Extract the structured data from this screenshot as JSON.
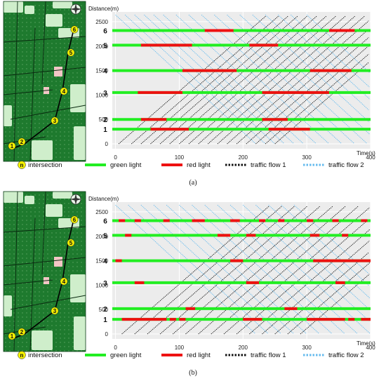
{
  "colors": {
    "green_light": "#22ee22",
    "red_light": "#ee1111",
    "flow1": "#111111",
    "flow2": "#66bbee",
    "plot_bg": "#ececec",
    "map_dark": "#1e7a2e",
    "map_light": "#cfeecb",
    "badge": "#f4f000"
  },
  "legend": {
    "badge_n": "n",
    "intersection": "intersection",
    "green": "green light",
    "red": "red light",
    "flow1": "traffic flow 1",
    "flow2": "traffic flow 2"
  },
  "chart_data": [
    {
      "type": "line",
      "caption": "(a)",
      "ylabel": "Distance(m)",
      "xlabel": "Time(s)",
      "xlim": [
        -5,
        400
      ],
      "ylim": [
        -100,
        2700
      ],
      "xticks": [
        0,
        100,
        200,
        300,
        400
      ],
      "yticks": [
        0,
        500,
        1000,
        1500,
        2000,
        2500
      ],
      "intersections": [
        {
          "id": "1",
          "pos": 300,
          "red": [
            [
              55,
              115
            ],
            [
              240,
              305
            ]
          ]
        },
        {
          "id": "2",
          "pos": 500,
          "red": [
            [
              40,
              80
            ],
            [
              230,
              270
            ]
          ]
        },
        {
          "id": "3",
          "pos": 1050,
          "red": [
            [
              35,
              105
            ],
            [
              230,
              335
            ]
          ]
        },
        {
          "id": "4",
          "pos": 1500,
          "red": [
            [
              105,
              190
            ],
            [
              305,
              370
            ]
          ]
        },
        {
          "id": "5",
          "pos": 2020,
          "red": [
            [
              40,
              120
            ],
            [
              210,
              255
            ]
          ]
        },
        {
          "id": "6",
          "pos": 2320,
          "red": [
            [
              140,
              185
            ],
            [
              335,
              375
            ]
          ]
        }
      ],
      "flow1_start": [
        5,
        25,
        40,
        55,
        70,
        85,
        100,
        115,
        130,
        145,
        160,
        175,
        190,
        205,
        220,
        235,
        250
      ],
      "flow2_start": [
        0,
        15,
        30,
        45,
        60,
        75,
        95,
        115,
        135,
        155,
        175,
        195,
        215,
        235,
        255,
        275,
        300
      ]
    },
    {
      "type": "line",
      "caption": "(b)",
      "ylabel": "Distance(m)",
      "xlabel": "Time(s)",
      "xlim": [
        -5,
        400
      ],
      "ylim": [
        -100,
        2700
      ],
      "xticks": [
        0,
        100,
        200,
        300,
        400
      ],
      "yticks": [
        0,
        500,
        1000,
        1500,
        2000,
        2500
      ],
      "intersections": [
        {
          "id": "1",
          "pos": 300,
          "red": [
            [
              10,
              80
            ],
            [
              85,
              95
            ],
            [
              100,
              110
            ],
            [
              200,
              230
            ],
            [
              300,
              360
            ],
            [
              365,
              375
            ],
            [
              385,
              400
            ]
          ]
        },
        {
          "id": "2",
          "pos": 520,
          "red": [
            [
              110,
              125
            ],
            [
              265,
              285
            ]
          ]
        },
        {
          "id": "3",
          "pos": 1050,
          "red": [
            [
              30,
              45
            ],
            [
              205,
              225
            ],
            [
              345,
              360
            ]
          ]
        },
        {
          "id": "4",
          "pos": 1500,
          "red": [
            [
              0,
              10
            ],
            [
              180,
              200
            ],
            [
              310,
              400
            ]
          ]
        },
        {
          "id": "5",
          "pos": 2020,
          "red": [
            [
              15,
              25
            ],
            [
              160,
              180
            ],
            [
              205,
              220
            ],
            [
              305,
              320
            ],
            [
              355,
              365
            ]
          ]
        },
        {
          "id": "6",
          "pos": 2320,
          "red": [
            [
              5,
              15
            ],
            [
              30,
              40
            ],
            [
              75,
              85
            ],
            [
              120,
              140
            ],
            [
              180,
              195
            ],
            [
              225,
              235
            ],
            [
              255,
              265
            ],
            [
              300,
              310
            ],
            [
              340,
              350
            ],
            [
              385,
              395
            ]
          ]
        }
      ],
      "flow1_start": [
        10,
        30,
        50,
        70,
        90,
        110,
        130,
        150,
        170,
        190,
        210,
        230,
        250,
        270,
        290
      ],
      "flow2_start": [
        0,
        20,
        40,
        60,
        80,
        100,
        120,
        140,
        160,
        180,
        200,
        220,
        240,
        260,
        280
      ]
    }
  ]
}
